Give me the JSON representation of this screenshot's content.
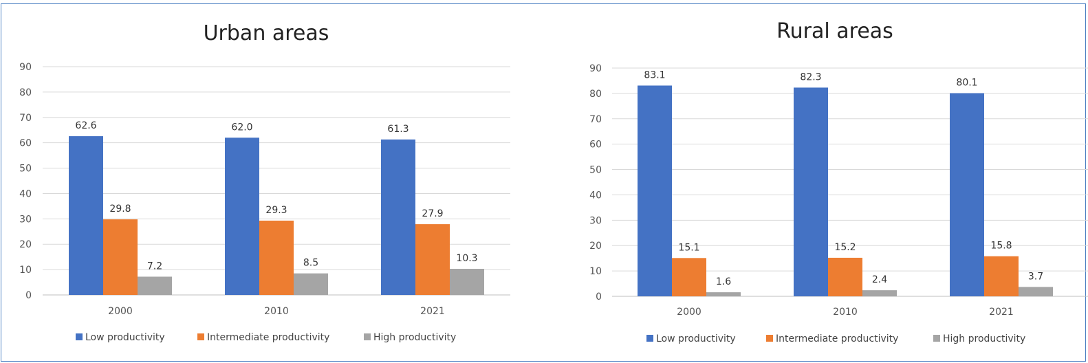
{
  "chart_data": [
    {
      "type": "bar",
      "title": "Urban areas",
      "categories": [
        "2000",
        "2010",
        "2021"
      ],
      "series": [
        {
          "name": "Low productivity",
          "color": "#4472c4",
          "values": [
            62.6,
            62.0,
            61.3
          ],
          "labels": [
            "62.6",
            "62.0",
            "61.3"
          ]
        },
        {
          "name": "Intermediate productivity",
          "color": "#ed7d31",
          "values": [
            29.8,
            29.3,
            27.9
          ],
          "labels": [
            "29.8",
            "29.3",
            "27.9"
          ]
        },
        {
          "name": "High productivity",
          "color": "#a5a5a5",
          "values": [
            7.2,
            8.5,
            10.3
          ],
          "labels": [
            "7.2",
            "8.5",
            "10.3"
          ]
        }
      ],
      "ylim": [
        0,
        90
      ],
      "yticks": [
        0,
        10,
        20,
        30,
        40,
        50,
        60,
        70,
        80,
        90
      ],
      "grid": true,
      "legend": "bottom"
    },
    {
      "type": "bar",
      "title": "Rural areas",
      "categories": [
        "2000",
        "2010",
        "2021"
      ],
      "series": [
        {
          "name": "Low productivity",
          "color": "#4472c4",
          "values": [
            83.1,
            82.3,
            80.1
          ],
          "labels": [
            "83.1",
            "82.3",
            "80.1"
          ]
        },
        {
          "name": "Intermediate productivity",
          "color": "#ed7d31",
          "values": [
            15.1,
            15.2,
            15.8
          ],
          "labels": [
            "15.1",
            "15.2",
            "15.8"
          ]
        },
        {
          "name": "High productivity",
          "color": "#a5a5a5",
          "values": [
            1.6,
            2.4,
            3.7
          ],
          "labels": [
            "1.6",
            "2.4",
            "3.7"
          ]
        }
      ],
      "ylim": [
        0,
        90
      ],
      "yticks": [
        0,
        10,
        20,
        30,
        40,
        50,
        60,
        70,
        80,
        90
      ],
      "grid": true,
      "legend": "bottom"
    }
  ]
}
